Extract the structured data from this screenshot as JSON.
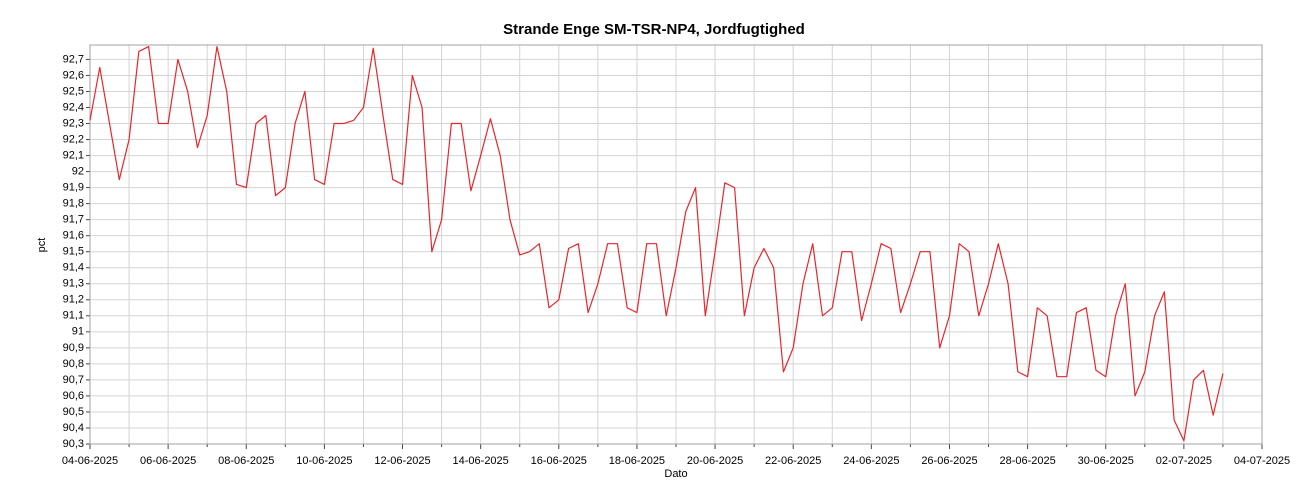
{
  "chart_data": {
    "type": "line",
    "title": "Strande Enge SM-TSR-NP4, Jordfugtighed",
    "xlabel": "Dato",
    "ylabel": "pct",
    "x": [
      "2025-06-04 00:00",
      "2025-06-04 06:00",
      "2025-06-04 12:00",
      "2025-06-04 18:00",
      "2025-06-05 00:00",
      "2025-06-05 06:00",
      "2025-06-05 12:00",
      "2025-06-05 18:00",
      "2025-06-06 00:00",
      "2025-06-06 06:00",
      "2025-06-06 12:00",
      "2025-06-06 18:00",
      "2025-06-07 00:00",
      "2025-06-07 06:00",
      "2025-06-07 12:00",
      "2025-06-07 18:00",
      "2025-06-08 00:00",
      "2025-06-08 06:00",
      "2025-06-08 12:00",
      "2025-06-08 18:00",
      "2025-06-09 00:00",
      "2025-06-09 06:00",
      "2025-06-09 12:00",
      "2025-06-09 18:00",
      "2025-06-10 00:00",
      "2025-06-10 06:00",
      "2025-06-10 12:00",
      "2025-06-10 18:00",
      "2025-06-11 00:00",
      "2025-06-11 06:00",
      "2025-06-11 12:00",
      "2025-06-11 18:00",
      "2025-06-12 00:00",
      "2025-06-12 06:00",
      "2025-06-12 12:00",
      "2025-06-12 18:00",
      "2025-06-13 00:00",
      "2025-06-13 06:00",
      "2025-06-13 12:00",
      "2025-06-13 18:00",
      "2025-06-14 00:00",
      "2025-06-14 06:00",
      "2025-06-14 12:00",
      "2025-06-14 18:00",
      "2025-06-15 00:00",
      "2025-06-15 06:00",
      "2025-06-15 12:00",
      "2025-06-15 18:00",
      "2025-06-16 00:00",
      "2025-06-16 06:00",
      "2025-06-16 12:00",
      "2025-06-16 18:00",
      "2025-06-17 00:00",
      "2025-06-17 06:00",
      "2025-06-17 12:00",
      "2025-06-17 18:00",
      "2025-06-18 00:00",
      "2025-06-18 06:00",
      "2025-06-18 12:00",
      "2025-06-18 18:00",
      "2025-06-19 00:00",
      "2025-06-19 06:00",
      "2025-06-19 12:00",
      "2025-06-19 18:00",
      "2025-06-20 00:00",
      "2025-06-20 06:00",
      "2025-06-20 12:00",
      "2025-06-20 18:00",
      "2025-06-21 00:00",
      "2025-06-21 06:00",
      "2025-06-21 12:00",
      "2025-06-21 18:00",
      "2025-06-22 00:00",
      "2025-06-22 06:00",
      "2025-06-22 12:00",
      "2025-06-22 18:00",
      "2025-06-23 00:00",
      "2025-06-23 06:00",
      "2025-06-23 12:00",
      "2025-06-23 18:00",
      "2025-06-24 00:00",
      "2025-06-24 06:00",
      "2025-06-24 12:00",
      "2025-06-24 18:00",
      "2025-06-25 00:00",
      "2025-06-25 06:00",
      "2025-06-25 12:00",
      "2025-06-25 18:00",
      "2025-06-26 00:00",
      "2025-06-26 06:00",
      "2025-06-26 12:00",
      "2025-06-26 18:00",
      "2025-06-27 00:00",
      "2025-06-27 06:00",
      "2025-06-27 12:00",
      "2025-06-27 18:00",
      "2025-06-28 00:00",
      "2025-06-28 06:00",
      "2025-06-28 12:00",
      "2025-06-28 18:00",
      "2025-06-29 00:00",
      "2025-06-29 06:00",
      "2025-06-29 12:00",
      "2025-06-29 18:00",
      "2025-06-30 00:00",
      "2025-06-30 06:00",
      "2025-06-30 12:00",
      "2025-06-30 18:00",
      "2025-07-01 00:00",
      "2025-07-01 06:00",
      "2025-07-01 12:00",
      "2025-07-01 18:00",
      "2025-07-02 00:00",
      "2025-07-02 06:00",
      "2025-07-02 12:00",
      "2025-07-02 18:00",
      "2025-07-03 00:00"
    ],
    "series": [
      {
        "name": "Jordfugtighed",
        "color": "#e8262b",
        "values": [
          92.32,
          92.65,
          92.3,
          91.95,
          92.2,
          92.75,
          92.78,
          92.3,
          92.3,
          92.7,
          92.5,
          92.15,
          92.35,
          92.78,
          92.5,
          91.92,
          91.9,
          92.3,
          92.35,
          91.85,
          91.9,
          92.3,
          92.5,
          91.95,
          91.92,
          92.3,
          92.3,
          92.32,
          92.4,
          92.77,
          92.35,
          91.95,
          91.92,
          92.6,
          92.4,
          91.5,
          91.7,
          92.3,
          92.3,
          91.88,
          92.1,
          92.33,
          92.1,
          91.7,
          91.48,
          91.5,
          91.55,
          91.15,
          91.2,
          91.52,
          91.55,
          91.12,
          91.3,
          91.55,
          91.55,
          91.15,
          91.12,
          91.55,
          91.55,
          91.1,
          91.4,
          91.75,
          91.9,
          91.1,
          91.5,
          91.93,
          91.9,
          91.1,
          91.4,
          91.52,
          91.4,
          90.75,
          90.9,
          91.3,
          91.55,
          91.1,
          91.15,
          91.5,
          91.5,
          91.07,
          91.3,
          91.55,
          91.52,
          91.12,
          91.3,
          91.5,
          91.5,
          90.9,
          91.1,
          91.55,
          91.5,
          91.1,
          91.3,
          91.55,
          91.3,
          90.75,
          90.72,
          91.15,
          91.1,
          90.72,
          90.72,
          91.12,
          91.15,
          90.76,
          90.72,
          91.1,
          91.3,
          90.6,
          90.75,
          91.1,
          91.25,
          90.45,
          90.32,
          90.7,
          90.76,
          90.48,
          90.74
        ]
      }
    ],
    "xlim": [
      "2025-06-04 00:00",
      "2025-07-04 00:00"
    ],
    "xticks": [
      {
        "value": "2025-06-04 00:00",
        "label": "04-06-2025"
      },
      {
        "value": "2025-06-06 00:00",
        "label": "06-06-2025"
      },
      {
        "value": "2025-06-08 00:00",
        "label": "08-06-2025"
      },
      {
        "value": "2025-06-10 00:00",
        "label": "10-06-2025"
      },
      {
        "value": "2025-06-12 00:00",
        "label": "12-06-2025"
      },
      {
        "value": "2025-06-14 00:00",
        "label": "14-06-2025"
      },
      {
        "value": "2025-06-16 00:00",
        "label": "16-06-2025"
      },
      {
        "value": "2025-06-18 00:00",
        "label": "18-06-2025"
      },
      {
        "value": "2025-06-20 00:00",
        "label": "20-06-2025"
      },
      {
        "value": "2025-06-22 00:00",
        "label": "22-06-2025"
      },
      {
        "value": "2025-06-24 00:00",
        "label": "24-06-2025"
      },
      {
        "value": "2025-06-26 00:00",
        "label": "26-06-2025"
      },
      {
        "value": "2025-06-28 00:00",
        "label": "28-06-2025"
      },
      {
        "value": "2025-06-30 00:00",
        "label": "30-06-2025"
      },
      {
        "value": "2025-07-02 00:00",
        "label": "02-07-2025"
      },
      {
        "value": "2025-07-04 00:00",
        "label": "04-07-2025"
      }
    ],
    "xminorticks": [
      "2025-06-05 00:00",
      "2025-06-07 00:00",
      "2025-06-09 00:00",
      "2025-06-11 00:00",
      "2025-06-13 00:00",
      "2025-06-15 00:00",
      "2025-06-17 00:00",
      "2025-06-19 00:00",
      "2025-06-21 00:00",
      "2025-06-23 00:00",
      "2025-06-25 00:00",
      "2025-06-27 00:00",
      "2025-06-29 00:00",
      "2025-07-01 00:00",
      "2025-07-03 00:00"
    ],
    "ylim": [
      90.3,
      92.79
    ],
    "yticks": [
      {
        "value": 90.3,
        "label": "90,3"
      },
      {
        "value": 90.4,
        "label": "90,4"
      },
      {
        "value": 90.5,
        "label": "90,5"
      },
      {
        "value": 90.6,
        "label": "90,6"
      },
      {
        "value": 90.7,
        "label": "90,7"
      },
      {
        "value": 90.8,
        "label": "90,8"
      },
      {
        "value": 90.9,
        "label": "90,9"
      },
      91,
      {
        "value": 91.1,
        "label": "91,1"
      },
      {
        "value": 91.2,
        "label": "91,2"
      },
      {
        "value": 91.3,
        "label": "91,3"
      },
      {
        "value": 91.4,
        "label": "91,4"
      },
      {
        "value": 91.5,
        "label": "91,5"
      },
      {
        "value": 91.6,
        "label": "91,6"
      },
      {
        "value": 91.7,
        "label": "91,7"
      },
      {
        "value": 91.8,
        "label": "91,8"
      },
      {
        "value": 91.9,
        "label": "91,9"
      },
      92,
      {
        "value": 92.1,
        "label": "92,1"
      },
      {
        "value": 92.2,
        "label": "92,2"
      },
      {
        "value": 92.3,
        "label": "92,3"
      },
      {
        "value": 92.4,
        "label": "92,4"
      },
      {
        "value": 92.5,
        "label": "92,5"
      },
      {
        "value": 92.6,
        "label": "92,6"
      },
      {
        "value": 92.7,
        "label": "92,7"
      }
    ],
    "grid": true
  }
}
